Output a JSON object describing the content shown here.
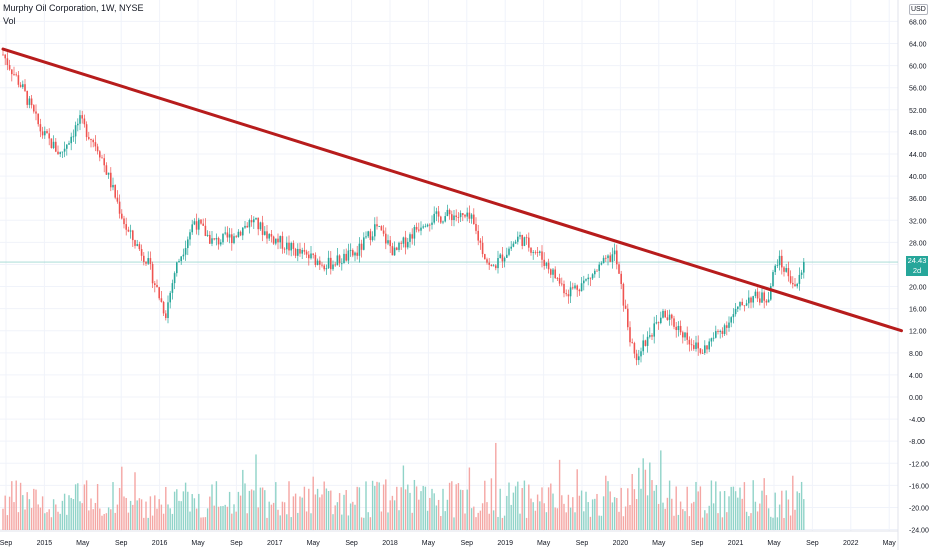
{
  "header": {
    "title": "Murphy Oil Corporation, 1W, NYSE",
    "indicator": "Vol",
    "currency": "USD"
  },
  "last_price": {
    "value": "24.43",
    "change": "2d 11h",
    "color": "#26a69a"
  },
  "colors": {
    "up": "#26a69a",
    "down": "#ef5350",
    "trendline": "#b71c1c",
    "vol_up": "#8fd3c8",
    "vol_down": "#f4a6a3"
  },
  "chart_data": {
    "type": "candlestick",
    "price_axis_ticks": [
      "68.00",
      "64.00",
      "60.00",
      "56.00",
      "52.00",
      "48.00",
      "44.00",
      "40.00",
      "36.00",
      "32.00",
      "28.00",
      "24.00",
      "20.00",
      "16.00",
      "12.00",
      "8.00",
      "4.00",
      "0.00",
      "-4.00",
      "-8.00",
      "-12.00",
      "-16.00",
      "-20.00",
      "-24.00"
    ],
    "time_axis_ticks": [
      "Sep",
      "2015",
      "May",
      "Sep",
      "2016",
      "May",
      "Sep",
      "2017",
      "May",
      "Sep",
      "2018",
      "May",
      "Sep",
      "2019",
      "May",
      "Sep",
      "2020",
      "May",
      "Sep",
      "2021",
      "May",
      "Sep",
      "2022",
      "May"
    ],
    "grid": true,
    "trendline": {
      "start": {
        "date": "2014-09",
        "price": 63.0
      },
      "end": {
        "date": "2022-07",
        "price": 12.0
      }
    },
    "horizontal_line": 24.43,
    "price_path": [
      {
        "date": "2014-09",
        "price": 62
      },
      {
        "date": "2014-11",
        "price": 56
      },
      {
        "date": "2015-01",
        "price": 48
      },
      {
        "date": "2015-03",
        "price": 44
      },
      {
        "date": "2015-05",
        "price": 50
      },
      {
        "date": "2015-07",
        "price": 45
      },
      {
        "date": "2015-08",
        "price": 40
      },
      {
        "date": "2015-10",
        "price": 30
      },
      {
        "date": "2015-12",
        "price": 25
      },
      {
        "date": "2016-02",
        "price": 15
      },
      {
        "date": "2016-03",
        "price": 23
      },
      {
        "date": "2016-05",
        "price": 32
      },
      {
        "date": "2016-07",
        "price": 28
      },
      {
        "date": "2016-09",
        "price": 29
      },
      {
        "date": "2016-11",
        "price": 32
      },
      {
        "date": "2017-01",
        "price": 29
      },
      {
        "date": "2017-04",
        "price": 26
      },
      {
        "date": "2017-07",
        "price": 24
      },
      {
        "date": "2017-10",
        "price": 26
      },
      {
        "date": "2017-12",
        "price": 31
      },
      {
        "date": "2018-02",
        "price": 26
      },
      {
        "date": "2018-05",
        "price": 32
      },
      {
        "date": "2018-08",
        "price": 33
      },
      {
        "date": "2018-10",
        "price": 32
      },
      {
        "date": "2018-12",
        "price": 23
      },
      {
        "date": "2019-03",
        "price": 29
      },
      {
        "date": "2019-05",
        "price": 26
      },
      {
        "date": "2019-08",
        "price": 19
      },
      {
        "date": "2019-10",
        "price": 21
      },
      {
        "date": "2020-01",
        "price": 26
      },
      {
        "date": "2020-03",
        "price": 7
      },
      {
        "date": "2020-06",
        "price": 15
      },
      {
        "date": "2020-08",
        "price": 12
      },
      {
        "date": "2020-10",
        "price": 8
      },
      {
        "date": "2020-12",
        "price": 12
      },
      {
        "date": "2021-03",
        "price": 18
      },
      {
        "date": "2021-05",
        "price": 18
      },
      {
        "date": "2021-06",
        "price": 25
      },
      {
        "date": "2021-08",
        "price": 20
      },
      {
        "date": "2021-09",
        "price": 24.43
      }
    ]
  }
}
